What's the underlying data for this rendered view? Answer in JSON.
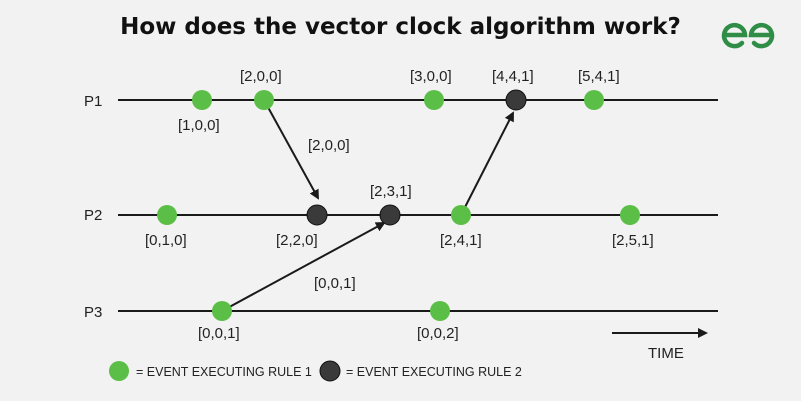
{
  "title": "How does the vector clock algorithm work?",
  "logo": {
    "icon": "geeksforgeeks-logo-icon",
    "color": "#2f8d46"
  },
  "colors": {
    "rule1": "#5bbf47",
    "rule2": "#3a3a3a",
    "line": "#1a1a1a"
  },
  "processes": [
    {
      "label": "P1"
    },
    {
      "label": "P2"
    },
    {
      "label": "P3"
    }
  ],
  "events": [
    {
      "process": "P1",
      "rule": 1,
      "label": "[1,0,0]"
    },
    {
      "process": "P1",
      "rule": 1,
      "label": "[2,0,0]"
    },
    {
      "process": "P1",
      "rule": 1,
      "label": "[3,0,0]"
    },
    {
      "process": "P1",
      "rule": 2,
      "label": "[4,4,1]"
    },
    {
      "process": "P1",
      "rule": 1,
      "label": "[5,4,1]"
    },
    {
      "process": "P2",
      "rule": 1,
      "label": "[0,1,0]"
    },
    {
      "process": "P2",
      "rule": 2,
      "label": "[2,2,0]"
    },
    {
      "process": "P2",
      "rule": 2,
      "label": "[2,3,1]"
    },
    {
      "process": "P2",
      "rule": 1,
      "label": "[2,4,1]"
    },
    {
      "process": "P2",
      "rule": 1,
      "label": "[2,5,1]"
    },
    {
      "process": "P3",
      "rule": 1,
      "label": "[0,0,1]"
    },
    {
      "process": "P3",
      "rule": 1,
      "label": "[0,0,2]"
    }
  ],
  "messages": [
    {
      "from": "[2,0,0]",
      "to": "[2,2,0]",
      "label": "[2,0,0]"
    },
    {
      "from": "[0,0,1]",
      "to": "[2,3,1]",
      "label": "[0,0,1]"
    },
    {
      "from": "[2,4,1]",
      "to": "[4,4,1]",
      "label": ""
    }
  ],
  "time_label": "TIME",
  "legend": {
    "rule1": "= EVENT EXECUTING RULE 1",
    "rule2": "= EVENT EXECUTING RULE 2"
  }
}
